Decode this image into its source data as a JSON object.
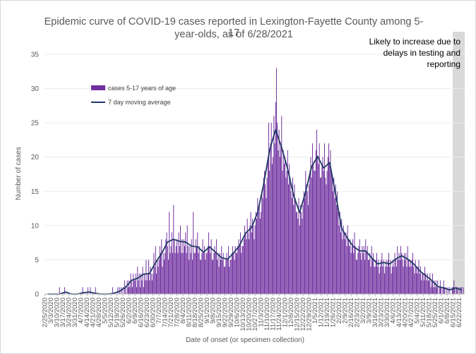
{
  "chart_data": {
    "type": "bar",
    "title_line1": "Epidemic curve of COVID-19 cases reported in Lexington-Fayette County among 5-17",
    "title_line2": "year-olds, as of 6/28/2021",
    "xlabel": "Date of onset (or specimen collection)",
    "ylabel": "Number of cases",
    "ylim": [
      0,
      35
    ],
    "yticks": [
      0,
      5,
      10,
      15,
      20,
      25,
      30,
      35
    ],
    "start_date": "2020-02-25",
    "end_date": "2021-06-28",
    "xtick_labels": [
      "2/25/2020",
      "3/3/2020",
      "3/10/2020",
      "3/17/2020",
      "3/24/2020",
      "3/31/2020",
      "4/7/2020",
      "4/14/2020",
      "4/21/2020",
      "4/28/2020",
      "5/5/2020",
      "5/12/2020",
      "5/19/2020",
      "5/26/2020",
      "6/2/2020",
      "6/9/2020",
      "6/16/2020",
      "6/23/2020",
      "6/30/2020",
      "7/7/2020",
      "7/14/2020",
      "7/21/2020",
      "7/28/2020",
      "8/4/2020",
      "8/11/2020",
      "8/18/2020",
      "8/25/2020",
      "9/1/2020",
      "9/8/2020",
      "9/15/2020",
      "9/22/2020",
      "9/29/2020",
      "10/6/2020",
      "10/13/2020",
      "10/20/2020",
      "10/27/2020",
      "11/3/2020",
      "11/10/2020",
      "11/17/2020",
      "11/24/2020",
      "12/1/2020",
      "12/8/2020",
      "12/15/2020",
      "12/22/2020",
      "12/29/2020",
      "1/5/2021",
      "1/12/2021",
      "1/19/2021",
      "1/26/2021",
      "2/2/2021",
      "2/9/2021",
      "2/16/2021",
      "2/23/2021",
      "3/2/2021",
      "3/9/2021",
      "3/16/2021",
      "3/23/2021",
      "3/30/2021",
      "4/6/2021",
      "4/13/2021",
      "4/20/2021",
      "4/27/2021",
      "5/4/2021",
      "5/11/2021",
      "5/18/2021",
      "5/25/2021",
      "6/1/2021",
      "6/8/2021",
      "6/15/2021",
      "6/22/2021"
    ],
    "series": [
      {
        "name": "cases 5-17 years of age",
        "type": "bar",
        "color": "#7030a0"
      },
      {
        "name": "7 day moving average",
        "type": "line",
        "color": "#1f3864"
      }
    ],
    "weekly_pattern": [
      [
        0,
        0,
        0,
        0,
        0,
        0,
        0
      ],
      [
        0,
        0,
        0,
        0,
        0,
        0,
        0
      ],
      [
        0,
        0,
        0,
        1,
        0,
        0,
        0
      ],
      [
        0,
        0,
        1,
        0,
        0,
        0,
        0
      ],
      [
        0,
        0,
        0,
        0,
        0,
        0,
        0
      ],
      [
        0,
        0,
        0,
        0,
        0,
        0,
        0
      ],
      [
        0,
        0,
        1,
        0,
        0,
        0,
        0
      ],
      [
        0,
        1,
        0,
        0,
        1,
        0,
        0
      ],
      [
        0,
        0,
        0,
        1,
        0,
        0,
        0
      ],
      [
        0,
        0,
        0,
        0,
        0,
        0,
        0
      ],
      [
        0,
        0,
        0,
        0,
        0,
        0,
        0
      ],
      [
        0,
        0,
        1,
        0,
        0,
        0,
        0
      ],
      [
        0,
        1,
        0,
        1,
        0,
        1,
        0
      ],
      [
        1,
        0,
        2,
        1,
        0,
        2,
        1
      ],
      [
        2,
        1,
        3,
        2,
        1,
        3,
        2
      ],
      [
        2,
        3,
        1,
        4,
        2,
        3,
        1
      ],
      [
        3,
        2,
        4,
        1,
        3,
        2,
        5
      ],
      [
        2,
        3,
        5,
        2,
        4,
        3,
        2
      ],
      [
        3,
        6,
        4,
        7,
        3,
        5,
        4
      ],
      [
        5,
        7,
        6,
        8,
        4,
        6,
        5
      ],
      [
        6,
        8,
        9,
        7,
        5,
        12,
        6
      ],
      [
        7,
        9,
        6,
        13,
        8,
        6,
        7
      ],
      [
        8,
        6,
        9,
        7,
        10,
        6,
        8
      ],
      [
        6,
        8,
        7,
        9,
        6,
        10,
        7
      ],
      [
        5,
        7,
        6,
        8,
        5,
        12,
        6
      ],
      [
        6,
        8,
        7,
        9,
        6,
        7,
        5
      ],
      [
        5,
        6,
        8,
        6,
        7,
        5,
        6
      ],
      [
        6,
        7,
        9,
        7,
        6,
        8,
        5
      ],
      [
        5,
        6,
        7,
        6,
        8,
        5,
        6
      ],
      [
        4,
        6,
        5,
        7,
        5,
        6,
        4
      ],
      [
        4,
        5,
        6,
        5,
        7,
        4,
        5
      ],
      [
        5,
        6,
        7,
        6,
        5,
        7,
        6
      ],
      [
        6,
        7,
        8,
        7,
        9,
        6,
        7
      ],
      [
        7,
        8,
        10,
        9,
        8,
        11,
        9
      ],
      [
        8,
        10,
        12,
        9,
        11,
        10,
        8
      ],
      [
        10,
        12,
        11,
        14,
        12,
        13,
        11
      ],
      [
        12,
        15,
        14,
        17,
        18,
        16,
        14
      ],
      [
        17,
        20,
        25,
        18,
        22,
        25,
        19
      ],
      [
        20,
        26,
        22,
        28,
        33,
        25,
        21
      ],
      [
        24,
        20,
        22,
        26,
        18,
        21,
        19
      ],
      [
        20,
        17,
        18,
        21,
        16,
        19,
        17
      ],
      [
        15,
        14,
        17,
        13,
        16,
        14,
        12
      ],
      [
        12,
        11,
        14,
        10,
        13,
        12,
        11
      ],
      [
        13,
        15,
        14,
        18,
        16,
        15,
        13
      ],
      [
        16,
        18,
        20,
        17,
        22,
        19,
        18
      ],
      [
        18,
        21,
        24,
        20,
        19,
        22,
        17
      ],
      [
        17,
        19,
        20,
        18,
        22,
        17,
        16
      ],
      [
        18,
        20,
        22,
        19,
        21,
        18,
        17
      ],
      [
        15,
        17,
        14,
        16,
        13,
        15,
        12
      ],
      [
        10,
        12,
        9,
        11,
        8,
        10,
        9
      ],
      [
        8,
        9,
        7,
        10,
        8,
        7,
        8
      ],
      [
        6,
        7,
        8,
        6,
        9,
        7,
        5
      ],
      [
        5,
        6,
        7,
        8,
        6,
        5,
        7
      ],
      [
        6,
        7,
        5,
        8,
        6,
        7,
        5
      ],
      [
        5,
        6,
        4,
        7,
        5,
        6,
        4
      ],
      [
        4,
        5,
        6,
        4,
        5,
        3,
        4
      ],
      [
        5,
        6,
        4,
        5,
        3,
        4,
        5
      ],
      [
        4,
        5,
        6,
        4,
        5,
        3,
        4
      ],
      [
        5,
        4,
        6,
        5,
        4,
        7,
        5
      ],
      [
        6,
        5,
        7,
        6,
        5,
        4,
        6
      ],
      [
        5,
        6,
        4,
        7,
        5,
        4,
        5
      ],
      [
        4,
        5,
        6,
        4,
        3,
        5,
        4
      ],
      [
        3,
        4,
        5,
        3,
        4,
        2,
        3
      ],
      [
        3,
        2,
        4,
        3,
        2,
        3,
        2
      ],
      [
        2,
        3,
        1,
        2,
        3,
        1,
        2
      ],
      [
        1,
        2,
        1,
        2,
        0,
        1,
        2
      ],
      [
        1,
        0,
        1,
        2,
        1,
        0,
        1
      ],
      [
        0,
        1,
        0,
        1,
        0,
        0,
        1
      ],
      [
        1,
        2,
        1,
        0,
        1,
        1,
        0
      ],
      [
        1,
        0,
        1,
        1,
        0,
        1,
        0
      ]
    ],
    "moving_average_anchor_values": [
      0,
      0,
      0,
      0.3,
      0,
      0,
      0.2,
      0.3,
      0.1,
      0,
      0,
      0.1,
      0.4,
      1.0,
      2.0,
      2.3,
      2.9,
      3.0,
      4.6,
      5.9,
      7.6,
      8.0,
      7.7,
      7.6,
      7.0,
      6.9,
      6.1,
      6.9,
      6.1,
      5.3,
      5.1,
      6.0,
      7.1,
      8.9,
      9.7,
      11.9,
      16.0,
      21.0,
      24.0,
      21.4,
      18.3,
      14.4,
      11.9,
      14.9,
      18.6,
      20.1,
      18.4,
      19.2,
      14.6,
      9.6,
      8.1,
      6.9,
      6.3,
      6.3,
      5.3,
      4.4,
      4.6,
      4.4,
      5.1,
      5.6,
      5.1,
      4.4,
      3.4,
      2.7,
      2.0,
      1.1,
      0.9,
      0.6,
      0.9,
      0.6
    ],
    "legend_position": "upper-left",
    "shaded_region": {
      "start_date": "2021-06-15",
      "end_date": "2021-06-28",
      "color": "#d9d9d9",
      "label": [
        "Likely to increase due to",
        "delays in testing and",
        "reporting"
      ]
    }
  }
}
